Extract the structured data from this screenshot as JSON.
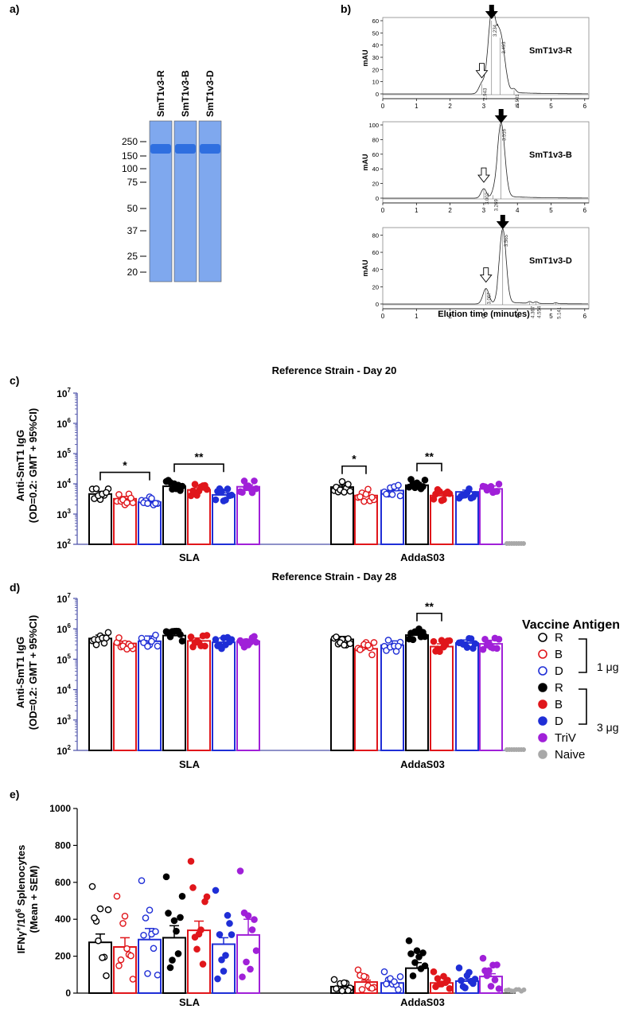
{
  "panel_labels": {
    "a": "a)",
    "b": "b)",
    "c": "c)",
    "d": "d)",
    "e": "e)"
  },
  "gel": {
    "lanes": [
      "SmT1v3-R",
      "SmT1v3-B",
      "SmT1v3-D"
    ],
    "markers": [
      "250",
      "150",
      "100",
      "75",
      "50",
      "37",
      "25",
      "20"
    ],
    "band_color": "#2f6fe0",
    "lane_color": "#7fa8ee"
  },
  "chromatograms": [
    {
      "name": "SmT1v3-R",
      "ylabel": "mAU",
      "yticks": [
        "0",
        "10",
        "20",
        "30",
        "40",
        "50",
        "60"
      ],
      "ymax": 60,
      "peaks": [
        {
          "x": 2.943,
          "h": 8,
          "w": 0.09,
          "label": "2.943"
        },
        {
          "x": 3.234,
          "h": 63,
          "w": 0.11,
          "label": "3.234"
        },
        {
          "x": 3.493,
          "h": 46,
          "w": 0.13,
          "label": "3.493"
        },
        {
          "x": 3.901,
          "h": 3,
          "w": 0.06,
          "label": "3.901"
        }
      ],
      "open_arrow_x": 2.943,
      "filled_arrow_x": 3.234
    },
    {
      "name": "SmT1v3-B",
      "ylabel": "mAU",
      "yticks": [
        "0",
        "20",
        "40",
        "60",
        "80",
        "100"
      ],
      "ymax": 100,
      "peaks": [
        {
          "x": 3.002,
          "h": 13,
          "w": 0.08,
          "label": "3.002"
        },
        {
          "x": 3.269,
          "h": 4,
          "w": 0.06,
          "label": "3.269"
        },
        {
          "x": 3.516,
          "h": 100,
          "w": 0.11,
          "label": "3.516"
        }
      ],
      "open_arrow_x": 3.002,
      "filled_arrow_x": 3.516
    },
    {
      "name": "SmT1v3-D",
      "ylabel": "mAU",
      "yticks": [
        "0",
        "20",
        "40",
        "60",
        "80"
      ],
      "ymax": 85,
      "peaks": [
        {
          "x": 3.067,
          "h": 18,
          "w": 0.09,
          "label": "3.067"
        },
        {
          "x": 3.565,
          "h": 85,
          "w": 0.1,
          "label": "3.565"
        },
        {
          "x": 4.367,
          "h": 2,
          "w": 0.05,
          "label": "4.367"
        },
        {
          "x": 4.554,
          "h": 2,
          "w": 0.05,
          "label": "4.554"
        },
        {
          "x": 5.141,
          "h": 1,
          "w": 0.05,
          "label": "5.141"
        }
      ],
      "open_arrow_x": 3.067,
      "filled_arrow_x": 3.565
    }
  ],
  "chrom_xticks": [
    "0",
    "1",
    "2",
    "3",
    "4",
    "5",
    "6"
  ],
  "chrom_xlabel": "Elution time (minutes)",
  "panel_c": {
    "title": "Reference Strain - Day 20",
    "ylabel_lines": [
      "Anti-SmT1 IgG",
      "(OD=0.2: GMT + 95%CI)"
    ],
    "groups": [
      "SLA",
      "AddaS03"
    ]
  },
  "panel_d": {
    "title": "Reference Strain - Day 28",
    "ylabel_lines": [
      "Anti-SmT1 IgG",
      "(OD=0.2: GMT + 95%CI)"
    ],
    "groups": [
      "SLA",
      "AddaS03"
    ]
  },
  "panel_e": {
    "ylabel_line1": "IFNγ",
    "ylabel_line1b": "/10",
    "ylabel_line1c": " Splenocytes",
    "ylabel_line2": "(Mean + SEM)",
    "groups": [
      "SLA",
      "AddaS03"
    ],
    "yticks": [
      "0",
      "200",
      "400",
      "600",
      "800",
      "1000"
    ]
  },
  "log_ticks": [
    {
      "base": "10",
      "exp": "2"
    },
    {
      "base": "10",
      "exp": "3"
    },
    {
      "base": "10",
      "exp": "4"
    },
    {
      "base": "10",
      "exp": "5"
    },
    {
      "base": "10",
      "exp": "6"
    },
    {
      "base": "10",
      "exp": "7"
    }
  ],
  "significance": {
    "single": "*",
    "double": "**"
  },
  "legend": {
    "title": "Vaccine Antigen",
    "items": [
      {
        "label": "R",
        "color": "#000000",
        "filled": false
      },
      {
        "label": "B",
        "color": "#e0161b",
        "filled": false
      },
      {
        "label": "D",
        "color": "#1f2ed6",
        "filled": false
      },
      {
        "label": "R",
        "color": "#000000",
        "filled": true
      },
      {
        "label": "B",
        "color": "#e0161b",
        "filled": true
      },
      {
        "label": "D",
        "color": "#1f2ed6",
        "filled": true
      },
      {
        "label": "TriV",
        "color": "#a020d8",
        "filled": true
      },
      {
        "label": "Naive",
        "color": "#a8a8a8",
        "filled": true
      }
    ],
    "dose_1": "1 μg",
    "dose_3": "3 μg"
  },
  "chart_data": [
    {
      "type": "bar",
      "panel": "c",
      "title": "Reference Strain - Day 20",
      "ylabel": "Anti-SmT1 IgG (OD=0.2: GMT + 95%CI)",
      "yscale": "log",
      "ylim": [
        100,
        10000000
      ],
      "categories": [
        "SLA",
        "AddaS03"
      ],
      "series": [
        {
          "name": "R 1 μg",
          "values": [
            4600,
            7800
          ],
          "ci_upper": [
            5600,
            9000
          ]
        },
        {
          "name": "B 1 μg",
          "values": [
            3200,
            4100
          ],
          "ci_upper": [
            3800,
            5100
          ]
        },
        {
          "name": "D 1 μg",
          "values": [
            2500,
            6000
          ],
          "ci_upper": [
            3000,
            7000
          ]
        },
        {
          "name": "R 3 μg",
          "values": [
            8300,
            9000
          ],
          "ci_upper": [
            10500,
            11000
          ]
        },
        {
          "name": "B 3 μg",
          "values": [
            6300,
            4100
          ],
          "ci_upper": [
            7400,
            4900
          ]
        },
        {
          "name": "D 3 μg",
          "values": [
            4300,
            5400
          ],
          "ci_upper": [
            5000,
            6200
          ]
        },
        {
          "name": "TriV",
          "values": [
            8000,
            6800
          ],
          "ci_upper": [
            9200,
            8500
          ]
        },
        {
          "name": "Naive",
          "values": [
            null,
            100
          ]
        }
      ],
      "significance": [
        {
          "group": "SLA",
          "from": "R 1 μg",
          "to": "D 1 μg",
          "label": "*"
        },
        {
          "group": "SLA",
          "from": "R 3 μg",
          "to": "D 3 μg",
          "label": "**"
        },
        {
          "group": "AddaS03",
          "from": "R 1 μg",
          "to": "B 1 μg",
          "label": "*"
        },
        {
          "group": "AddaS03",
          "from": "R 3 μg",
          "to": "B 3 μg",
          "label": "**"
        }
      ]
    },
    {
      "type": "bar",
      "panel": "d",
      "title": "Reference Strain - Day 28",
      "ylabel": "Anti-SmT1 IgG (OD=0.2: GMT + 95%CI)",
      "yscale": "log",
      "ylim": [
        100,
        10000000
      ],
      "categories": [
        "SLA",
        "AddaS03"
      ],
      "series": [
        {
          "name": "R 1 μg",
          "values": [
            480000,
            450000
          ],
          "ci_upper": [
            620000,
            560000
          ]
        },
        {
          "name": "B 1 μg",
          "values": [
            330000,
            220000
          ],
          "ci_upper": [
            390000,
            280000
          ]
        },
        {
          "name": "D 1 μg",
          "values": [
            390000,
            290000
          ],
          "ci_upper": [
            580000,
            400000
          ]
        },
        {
          "name": "R 3 μg",
          "values": [
            600000,
            620000
          ],
          "ci_upper": [
            680000,
            760000
          ]
        },
        {
          "name": "B 3 μg",
          "values": [
            400000,
            260000
          ],
          "ci_upper": [
            500000,
            320000
          ]
        },
        {
          "name": "D 3 μg",
          "values": [
            360000,
            340000
          ],
          "ci_upper": [
            500000,
            430000
          ]
        },
        {
          "name": "TriV",
          "values": [
            390000,
            320000
          ],
          "ci_upper": [
            460000,
            420000
          ]
        },
        {
          "name": "Naive",
          "values": [
            null,
            100
          ]
        }
      ],
      "significance": [
        {
          "group": "AddaS03",
          "from": "R 3 μg",
          "to": "B 3 μg",
          "label": "**"
        }
      ]
    },
    {
      "type": "bar",
      "panel": "e",
      "ylabel": "IFNγ+/10^6 Splenocytes (Mean + SEM)",
      "ylim": [
        0,
        1000
      ],
      "categories": [
        "SLA",
        "AddaS03"
      ],
      "series": [
        {
          "name": "R 1 μg",
          "values": [
            275,
            35
          ],
          "sem": [
            45,
            8
          ]
        },
        {
          "name": "B 1 μg",
          "values": [
            250,
            60
          ],
          "sem": [
            50,
            10
          ]
        },
        {
          "name": "D 1 μg",
          "values": [
            290,
            55
          ],
          "sem": [
            60,
            10
          ]
        },
        {
          "name": "R 3 μg",
          "values": [
            300,
            135
          ],
          "sem": [
            65,
            30
          ]
        },
        {
          "name": "B 3 μg",
          "values": [
            340,
            55
          ],
          "sem": [
            50,
            8
          ]
        },
        {
          "name": "D 3 μg",
          "values": [
            265,
            65
          ],
          "sem": [
            35,
            10
          ]
        },
        {
          "name": "TriV",
          "values": [
            315,
            90
          ],
          "sem": [
            85,
            15
          ]
        },
        {
          "name": "Naive",
          "values": [
            null,
            15
          ]
        }
      ]
    }
  ]
}
